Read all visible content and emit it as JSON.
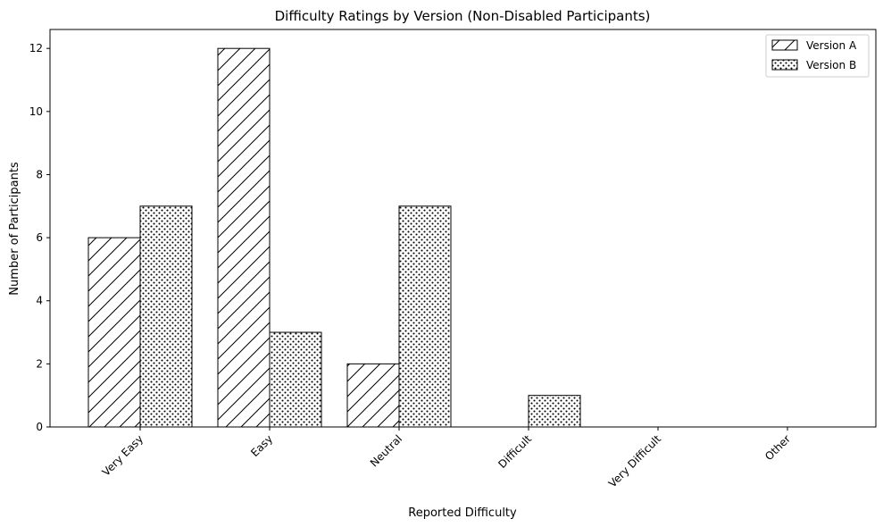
{
  "chart_data": {
    "type": "bar",
    "title": "Difficulty Ratings by Version (Non-Disabled Participants)",
    "xlabel": "Reported Difficulty",
    "ylabel": "Number of Participants",
    "categories": [
      "Very Easy",
      "Easy",
      "Neutral",
      "Difficult",
      "Very Difficult",
      "Other"
    ],
    "series": [
      {
        "name": "Version A",
        "values": [
          6,
          12,
          2,
          0,
          0,
          0
        ],
        "pattern": "diagonal-hatch"
      },
      {
        "name": "Version B",
        "values": [
          7,
          3,
          7,
          1,
          0,
          0
        ],
        "pattern": "dots"
      }
    ],
    "ylim": [
      0,
      12.6
    ],
    "yticks": [
      0,
      2,
      4,
      6,
      8,
      10,
      12
    ],
    "grid": false,
    "legend_position": "top-right",
    "colors": {
      "bar_fill": "#ffffff",
      "bar_edge": "#000000"
    }
  }
}
